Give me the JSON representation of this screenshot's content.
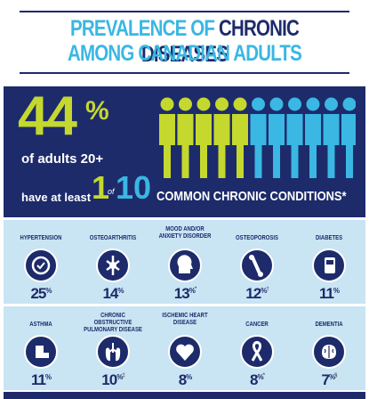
{
  "title": {
    "line1_light": "PREVALENCE OF",
    "line1_dark": "CHRONIC DISEASES",
    "line2": "AMONG CANADIAN ADULTS"
  },
  "hero": {
    "big_number": "44",
    "big_percent": "%",
    "of_adults": "of adults 20+",
    "have_at_least": "have at least",
    "one": "1",
    "of_word": "of",
    "ten": "10",
    "common": "COMMON CHRONIC CONDITIONS*",
    "colors": {
      "lime": "#c4d82e",
      "light_blue": "#3ab7e3",
      "navy": "#1d2b6b"
    },
    "people_lime_count_fraction": 0.44
  },
  "conditions_row1": [
    {
      "label": "HYPERTENSION",
      "pct": "25",
      "pct_sign": "%",
      "mark": "",
      "icon": "heart-pressure-icon"
    },
    {
      "label": "OSTEOARTHRITIS",
      "pct": "14",
      "pct_sign": "%",
      "mark": "",
      "icon": "joint-icon"
    },
    {
      "label": "MOOD AND/OR ANXIETY DISORDER",
      "pct": "13",
      "pct_sign": "%",
      "mark": "*",
      "icon": "head-icon"
    },
    {
      "label": "OSTEOPOROSIS",
      "pct": "12",
      "pct_sign": "%",
      "mark": "†",
      "icon": "bone-icon"
    },
    {
      "label": "DIABETES",
      "pct": "11",
      "pct_sign": "%",
      "mark": "",
      "icon": "glucose-meter-icon"
    }
  ],
  "conditions_row2": [
    {
      "label": "ASTHMA",
      "pct": "11",
      "pct_sign": "%",
      "mark": "",
      "icon": "inhaler-icon"
    },
    {
      "label": "CHRONIC OBSTRUCTIVE PULMONARY DISEASE",
      "pct": "10",
      "pct_sign": "%",
      "mark": "‡",
      "icon": "lungs-icon"
    },
    {
      "label": "ISCHEMIC HEART DISEASE",
      "pct": "8",
      "pct_sign": "%",
      "mark": "",
      "icon": "heart-icon"
    },
    {
      "label": "CANCER",
      "pct": "8",
      "pct_sign": "%",
      "mark": "*",
      "icon": "ribbon-icon"
    },
    {
      "label": "DEMENTIA",
      "pct": "7",
      "pct_sign": "%",
      "mark": "§",
      "icon": "brain-icon"
    }
  ]
}
